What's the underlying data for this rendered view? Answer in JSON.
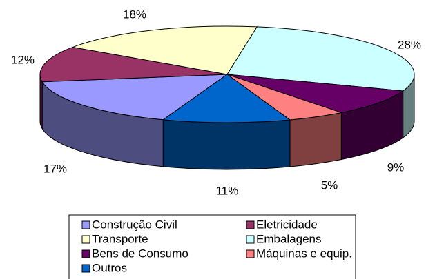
{
  "chart_data": {
    "type": "pie3d",
    "categories": [
      "Construção Civil",
      "Eletricidade",
      "Transporte",
      "Embalagens",
      "Bens de Consumo",
      "Máquinas e equip.",
      "Outros"
    ],
    "values": [
      17,
      12,
      18,
      28,
      9,
      5,
      11
    ],
    "value_labels": [
      "17%",
      "12%",
      "18%",
      "28%",
      "9%",
      "5%",
      "11%"
    ],
    "colors": [
      "#9999ff",
      "#993366",
      "#ffffcc",
      "#ccffff",
      "#660066",
      "#ff8080",
      "#0066cc"
    ]
  }
}
